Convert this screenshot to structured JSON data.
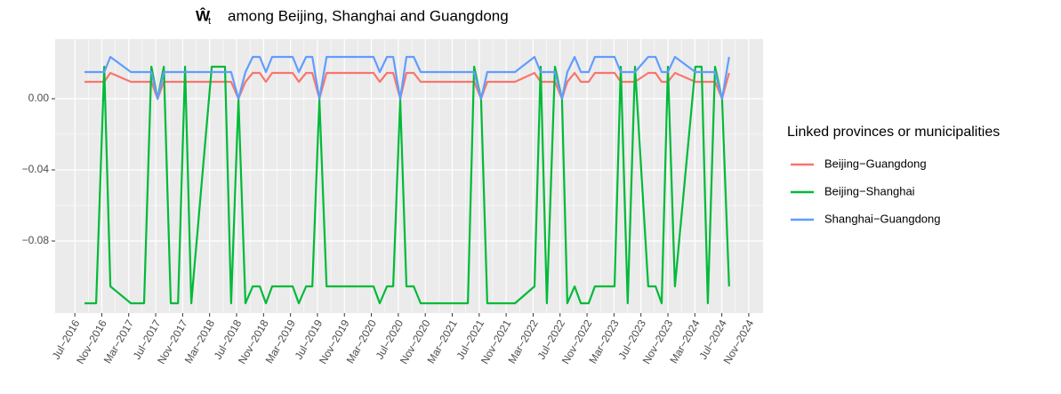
{
  "chart_data": {
    "type": "line",
    "title_symbol": "Ŵ",
    "title_subscript": "t",
    "title": "among Beijing, Shanghai and Guangdong",
    "legend_title": "Linked provinces or municipalities",
    "legend_position": "right",
    "grid": true,
    "x": [
      0.36,
      0.79,
      1.09,
      1.32,
      2.08,
      2.57,
      2.84,
      3.07,
      3.3,
      3.56,
      3.83,
      4.09,
      4.32,
      5.08,
      5.57,
      5.8,
      6.07,
      6.33,
      6.6,
      6.86,
      7.09,
      7.32,
      8.08,
      8.31,
      8.58,
      8.81,
      9.07,
      9.34,
      11.08,
      11.31,
      11.58,
      11.81,
      12.07,
      12.3,
      12.57,
      12.83,
      14.58,
      14.81,
      15.07,
      15.3,
      16.33,
      17.05,
      17.28,
      17.51,
      17.81,
      18.07,
      18.27,
      18.54,
      18.77,
      19.06,
      19.29,
      20.02,
      20.25,
      20.51,
      20.78,
      21.27,
      21.54,
      21.77,
      22.0,
      22.26,
      23.02,
      23.25,
      23.48,
      23.75,
      24.01,
      24.27
    ],
    "xlim": [
      -0.73,
      25.53
    ],
    "xticks": [
      {
        "value": 0,
        "label": "Jul−2016"
      },
      {
        "value": 1,
        "label": "Nov−2016"
      },
      {
        "value": 2,
        "label": "Mar−2017"
      },
      {
        "value": 3,
        "label": "Jul−2017"
      },
      {
        "value": 4,
        "label": "Nov−2017"
      },
      {
        "value": 5,
        "label": "Mar−2018"
      },
      {
        "value": 6,
        "label": "Jul−2018"
      },
      {
        "value": 7,
        "label": "Nov−2018"
      },
      {
        "value": 8,
        "label": "Mar−2019"
      },
      {
        "value": 9,
        "label": "Jul−2019"
      },
      {
        "value": 10,
        "label": "Nov−2019"
      },
      {
        "value": 11,
        "label": "Mar−2020"
      },
      {
        "value": 12,
        "label": "Jul−2020"
      },
      {
        "value": 13,
        "label": "Nov−2020"
      },
      {
        "value": 14,
        "label": "Mar−2021"
      },
      {
        "value": 15,
        "label": "Jul−2021"
      },
      {
        "value": 16,
        "label": "Nov−2021"
      },
      {
        "value": 17,
        "label": "Mar−2022"
      },
      {
        "value": 18,
        "label": "Jul−2022"
      },
      {
        "value": 19,
        "label": "Nov−2022"
      },
      {
        "value": 20,
        "label": "Mar−2023"
      },
      {
        "value": 21,
        "label": "Jul−2023"
      },
      {
        "value": 22,
        "label": "Nov−2023"
      },
      {
        "value": 23,
        "label": "Mar−2024"
      },
      {
        "value": 24,
        "label": "Jul−2024"
      },
      {
        "value": 25,
        "label": "Nov−2024"
      }
    ],
    "ylim": [
      -0.1205,
      0.0335
    ],
    "yticks": [
      {
        "value": 0,
        "label": "0.00"
      },
      {
        "value": -0.04,
        "label": "−0.04"
      },
      {
        "value": -0.08,
        "label": "−0.08"
      }
    ],
    "series": [
      {
        "name": "Beijing−Guangdong",
        "color": "#F8766D",
        "values": [
          0.0095,
          0.0095,
          0.0095,
          0.0145,
          0.0095,
          0.0095,
          0.0095,
          0,
          0.0095,
          0.0095,
          0.0095,
          0.0095,
          0.0095,
          0.0095,
          0.0095,
          0.0095,
          0,
          0.0095,
          0.0145,
          0.0145,
          0.0095,
          0.0145,
          0.0145,
          0.0095,
          0.0145,
          0.0145,
          0,
          0.0145,
          0.0145,
          0.0095,
          0.0145,
          0.0145,
          0,
          0.0145,
          0.0145,
          0.0095,
          0.0095,
          0.0095,
          0,
          0.0095,
          0.0095,
          0.0145,
          0.0095,
          0.0095,
          0.0095,
          0,
          0.0095,
          0.0145,
          0.0095,
          0.0095,
          0.0145,
          0.0145,
          0.0095,
          0.0095,
          0.0095,
          0.0145,
          0.0145,
          0.0095,
          0.0095,
          0.0145,
          0.0095,
          0.0095,
          0.0095,
          0.0095,
          0,
          0.0145
        ]
      },
      {
        "name": "Beijing−Shanghai",
        "color": "#00BA38",
        "values": [
          -0.115,
          -0.115,
          0.018,
          -0.1055,
          -0.115,
          -0.115,
          0.018,
          0,
          0.018,
          -0.115,
          -0.115,
          0.018,
          -0.115,
          0.018,
          0.018,
          -0.115,
          0,
          -0.115,
          -0.1055,
          -0.1055,
          -0.115,
          -0.1055,
          -0.1055,
          -0.115,
          -0.1055,
          -0.1055,
          0,
          -0.1055,
          -0.1055,
          -0.115,
          -0.1055,
          -0.1055,
          0,
          -0.1055,
          -0.1055,
          -0.115,
          -0.115,
          0.018,
          0,
          -0.115,
          -0.115,
          -0.1055,
          0.018,
          -0.115,
          0.018,
          0,
          -0.115,
          -0.1055,
          -0.115,
          -0.115,
          -0.1055,
          -0.1055,
          0.018,
          -0.115,
          0.018,
          -0.1055,
          -0.1055,
          -0.115,
          0.018,
          -0.1055,
          0.018,
          0.018,
          -0.115,
          0.018,
          0,
          -0.1055
        ]
      },
      {
        "name": "Shanghai−Guangdong",
        "color": "#619CFF",
        "values": [
          0.015,
          0.015,
          0.015,
          0.0235,
          0.015,
          0.015,
          0.015,
          0,
          0.015,
          0.015,
          0.015,
          0.015,
          0.015,
          0.015,
          0.015,
          0.015,
          0,
          0.015,
          0.0235,
          0.0235,
          0.015,
          0.0235,
          0.0235,
          0.015,
          0.0235,
          0.0235,
          0,
          0.0235,
          0.0235,
          0.015,
          0.0235,
          0.0235,
          0,
          0.0235,
          0.0235,
          0.015,
          0.015,
          0.015,
          0,
          0.015,
          0.015,
          0.0235,
          0.015,
          0.015,
          0.015,
          0,
          0.015,
          0.0235,
          0.015,
          0.015,
          0.0235,
          0.0235,
          0.015,
          0.015,
          0.015,
          0.0235,
          0.0235,
          0.015,
          0.015,
          0.0235,
          0.015,
          0.015,
          0.015,
          0.015,
          0,
          0.0235
        ]
      }
    ]
  }
}
